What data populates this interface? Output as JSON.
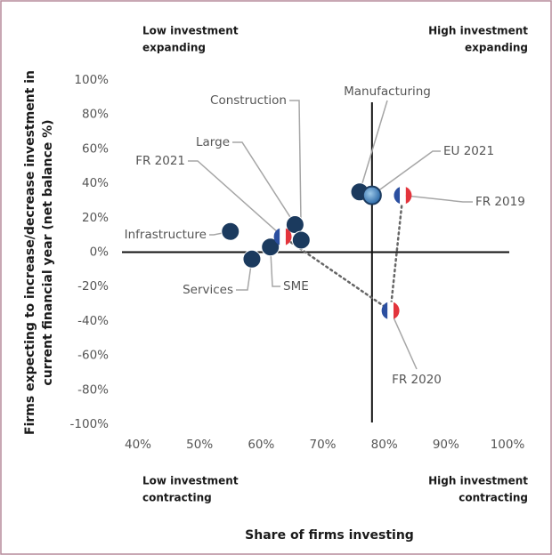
{
  "chart_data": {
    "type": "scatter",
    "y_axis_label": [
      "Firms expecting to increase/decrease investment in",
      "current financial year  (net balance %)"
    ],
    "x_axis_label": "Share of firms investing",
    "quadrant_labels": {
      "top_left": [
        "Low investment",
        "expanding"
      ],
      "top_right": [
        "High investment",
        "expanding"
      ],
      "bottom_left": [
        "Low investment",
        "contracting"
      ],
      "bottom_right": [
        "High investment",
        "contracting"
      ]
    },
    "xlim": [
      40,
      100
    ],
    "xticks": [
      {
        "value": 40,
        "label": "40%"
      },
      {
        "value": 50,
        "label": "50%"
      },
      {
        "value": 60,
        "label": "60%"
      },
      {
        "value": 70,
        "label": "70%"
      },
      {
        "value": 80,
        "label": "80%"
      },
      {
        "value": 90,
        "label": "90%"
      },
      {
        "value": 100,
        "label": "100%"
      }
    ],
    "ylim": [
      -100,
      100
    ],
    "yticks": [
      {
        "value": 100,
        "label": "100%"
      },
      {
        "value": 80,
        "label": "80%"
      },
      {
        "value": 60,
        "label": "60%"
      },
      {
        "value": 40,
        "label": "40%"
      },
      {
        "value": 20,
        "label": "20%"
      },
      {
        "value": 0,
        "label": "0%"
      },
      {
        "value": -20,
        "label": "-20%"
      },
      {
        "value": -40,
        "label": "-40%"
      },
      {
        "value": -60,
        "label": "-60%"
      },
      {
        "value": -80,
        "label": "-80%"
      },
      {
        "value": -100,
        "label": "-100%"
      }
    ],
    "color": "#1b3a5e",
    "points": [
      {
        "label": "Infrastructure",
        "x": 55,
        "y": 12,
        "marker": "dot"
      },
      {
        "label": "Services",
        "x": 58.5,
        "y": -4,
        "marker": "dot"
      },
      {
        "label": "SME",
        "x": 61.5,
        "y": 3,
        "marker": "dot"
      },
      {
        "label": "Large",
        "x": 65.5,
        "y": 16,
        "marker": "dot"
      },
      {
        "label": "Construction",
        "x": 66.5,
        "y": 7,
        "marker": "dot"
      },
      {
        "label": "Manufacturing",
        "x": 76,
        "y": 35,
        "marker": "dot"
      },
      {
        "label": "EU 2021",
        "x": 78,
        "y": 33,
        "marker": "eu"
      },
      {
        "label": "FR 2019",
        "x": 83,
        "y": 33,
        "marker": "fr"
      },
      {
        "label": "FR 2020",
        "x": 81,
        "y": -34,
        "marker": "fr"
      },
      {
        "label": "FR 2021",
        "x": 63.5,
        "y": 9,
        "marker": "fr"
      }
    ]
  }
}
